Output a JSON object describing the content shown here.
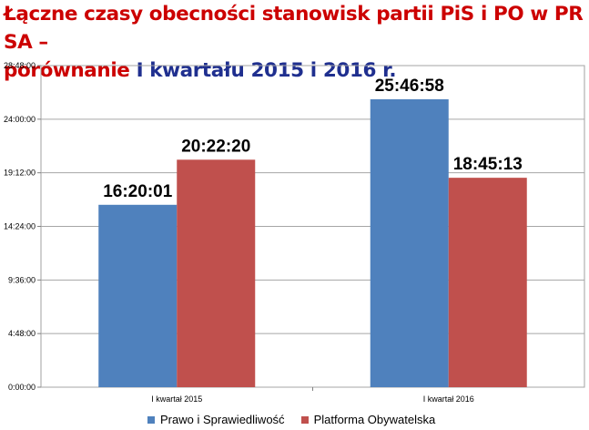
{
  "chart_data": {
    "type": "bar",
    "title_part1": "Łączne czasy obecności stanowisk partii PiS i PO w PR SA –",
    "title_part2a": "porównanie ",
    "title_part2b": "I kwartału 2015 i 2016 r.",
    "categories": [
      "I kwartał 2015",
      "I kwartał 2016"
    ],
    "series": [
      {
        "name": "Prawo i Sprawiedliwość",
        "color": "#4f81bd",
        "values": [
          58801,
          92818
        ],
        "labels": [
          "16:20:01",
          "25:46:58"
        ]
      },
      {
        "name": "Platforma Obywatelska",
        "color": "#c0504d",
        "values": [
          73340,
          67513
        ],
        "labels": [
          "20:22:20",
          "18:45:13"
        ]
      }
    ],
    "ylim": [
      0,
      103680
    ],
    "y_ticks": [
      0,
      17280,
      34560,
      51840,
      69120,
      86400,
      103680
    ],
    "y_tick_labels": [
      "0:00:00",
      "4:48:00",
      "9:36:00",
      "14:24:00",
      "19:12:00",
      "24:00:00",
      "28:48:00"
    ],
    "y_unit": "seconds",
    "grid": true,
    "legend_position": "bottom"
  }
}
